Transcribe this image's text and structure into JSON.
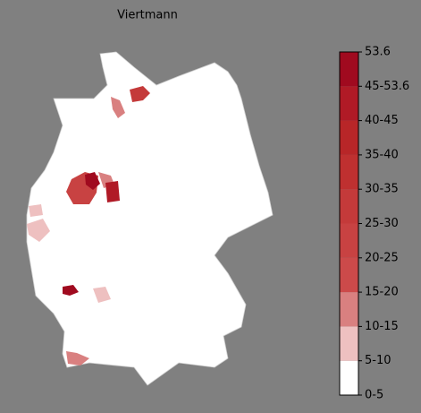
{
  "title": "Viertmann",
  "colorbar": {
    "labels": [
      "0-5",
      "5-10",
      "10-15",
      "15-20",
      "20-25",
      "25-30",
      "30-35",
      "35-40",
      "40-45",
      "45-53.6",
      "53.6"
    ],
    "colors": [
      "#ffffff",
      "#eec0c0",
      "#d98080",
      "#cc4a4a",
      "#c84242",
      "#c43a3a",
      "#bf3030",
      "#b82628",
      "#b01a26",
      "#a00a1f"
    ]
  }
}
